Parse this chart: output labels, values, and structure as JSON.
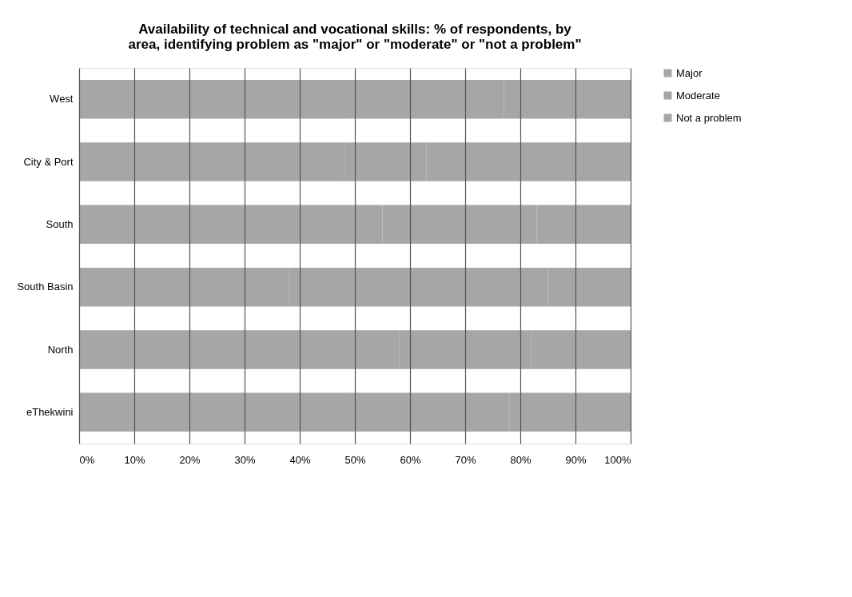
{
  "chart_data": {
    "type": "bar",
    "orientation": "horizontal",
    "stacked": true,
    "title": "Availability of technical and vocational skills: % of respondents, by area, identifying problem as \"major\" or \"moderate\" or \"not a problem\"",
    "categories": [
      "West",
      "City & Port",
      "South",
      "South Basin",
      "North",
      "eThekwini"
    ],
    "series": [
      {
        "name": "Major",
        "color": "#a6a6a6",
        "values": [
          49,
          48,
          55,
          38,
          58,
          49
        ]
      },
      {
        "name": "Moderate",
        "color": "#a6a6a6",
        "values": [
          28,
          15,
          28,
          47,
          24,
          29
        ]
      },
      {
        "name": "Not a problem",
        "color": "#a6a6a6",
        "values": [
          23,
          37,
          17,
          15,
          18,
          22
        ]
      }
    ],
    "xlim": [
      0,
      100
    ],
    "xticks": [
      {
        "value": 0,
        "label": "0%"
      },
      {
        "value": 10,
        "label": "10%"
      },
      {
        "value": 20,
        "label": "20%"
      },
      {
        "value": 30,
        "label": "30%"
      },
      {
        "value": 40,
        "label": "40%"
      },
      {
        "value": 50,
        "label": "50%"
      },
      {
        "value": 60,
        "label": "60%"
      },
      {
        "value": 70,
        "label": "70%"
      },
      {
        "value": 80,
        "label": "80%"
      },
      {
        "value": 90,
        "label": "90%"
      },
      {
        "value": 100,
        "label": "100%"
      }
    ],
    "grid": "x",
    "legend": "right"
  }
}
